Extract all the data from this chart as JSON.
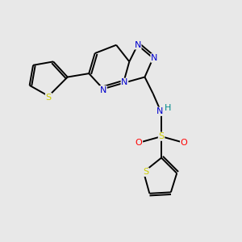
{
  "background_color": "#e8e8e8",
  "atom_colors": {
    "C": "#000000",
    "N": "#0000cc",
    "S": "#cccc00",
    "O": "#ff0000",
    "H": "#008b8b"
  },
  "figsize": [
    3.0,
    3.0
  ],
  "dpi": 100
}
